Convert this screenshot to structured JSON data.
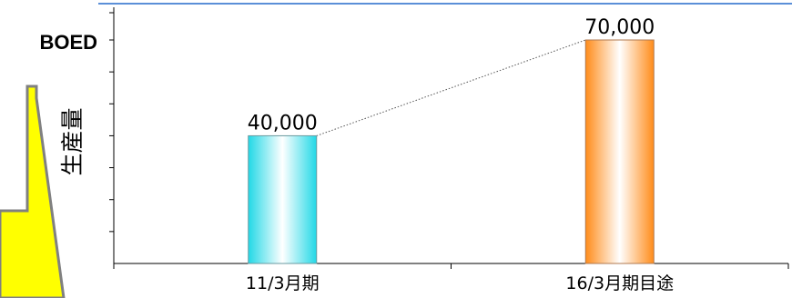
{
  "chart_data": {
    "type": "bar",
    "categories": [
      "11/3月期",
      "16/3月期目途"
    ],
    "values": [
      40000,
      70000
    ],
    "value_labels": [
      "40,000",
      "70,000"
    ],
    "unit": "BOED",
    "ylabel": "生産量",
    "ylim": [
      0,
      70000
    ],
    "grid": false,
    "connector_line": "dotted",
    "bar_styles": [
      {
        "edge": "#22d8e6",
        "center": "#ffffff",
        "stroke": "#6a9aa0"
      },
      {
        "edge": "#ff8c1a",
        "center": "#ffffff",
        "stroke": "#b07a50"
      }
    ]
  },
  "colors": {
    "callout_fill": "#ffff00",
    "callout_border": "#808080",
    "top_border": "#5b8fd8"
  }
}
